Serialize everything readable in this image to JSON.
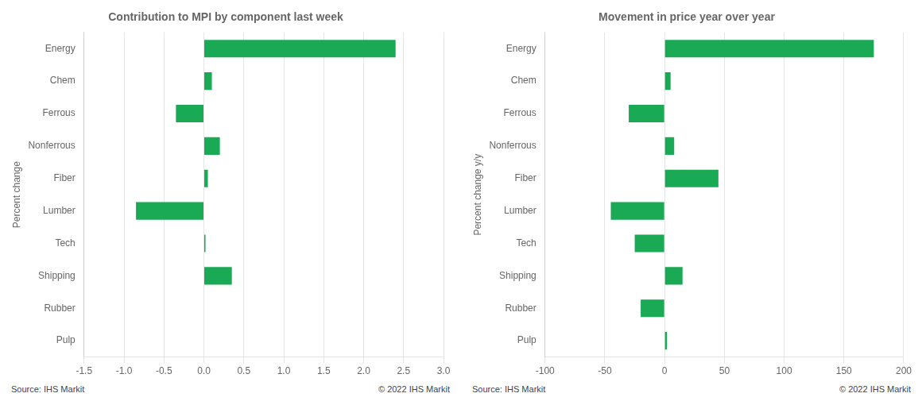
{
  "chart_data": [
    {
      "type": "bar",
      "orientation": "horizontal",
      "title": "Contribution to MPI by component last week",
      "ylabel": "Percent change",
      "categories": [
        "Energy",
        "Chem",
        "Ferrous",
        "Nonferrous",
        "Fiber",
        "Lumber",
        "Tech",
        "Shipping",
        "Rubber",
        "Pulp"
      ],
      "values": [
        2.4,
        0.1,
        -0.35,
        0.2,
        0.05,
        -0.85,
        0.02,
        0.35,
        0.0,
        0.0
      ],
      "color": "#1aaa55",
      "xlim": [
        -1.5,
        3.0
      ],
      "xticks": [
        -1.5,
        {
          "value": -1.0,
          "label": "-1.0"
        },
        -0.5,
        {
          "value": 0.0,
          "label": "0.0"
        },
        0.5,
        {
          "value": 1.0,
          "label": "1.0"
        },
        1.5,
        {
          "value": 2.0,
          "label": "2.0"
        },
        2.5,
        {
          "value": 3.0,
          "label": "3.0"
        }
      ],
      "grid": true,
      "annotations": [
        "Source:  IHS Markit",
        "© 2022  IHS Markit"
      ]
    },
    {
      "type": "bar",
      "orientation": "horizontal",
      "title": "Movement in price year over year",
      "ylabel": "Percent change y/y",
      "categories": [
        "Energy",
        "Chem",
        "Ferrous",
        "Nonferrous",
        "Fiber",
        "Lumber",
        "Tech",
        "Shipping",
        "Rubber",
        "Pulp"
      ],
      "values": [
        175,
        5,
        -30,
        8,
        45,
        -45,
        -25,
        15,
        -20,
        2
      ],
      "color": "#1aaa55",
      "xlim": [
        -100,
        200
      ],
      "xticks": [
        -100,
        -50,
        0,
        50,
        100,
        150,
        200
      ],
      "grid": true,
      "annotations": [
        "Source:  IHS Markit",
        "© 2022  IHS Markit"
      ]
    }
  ]
}
